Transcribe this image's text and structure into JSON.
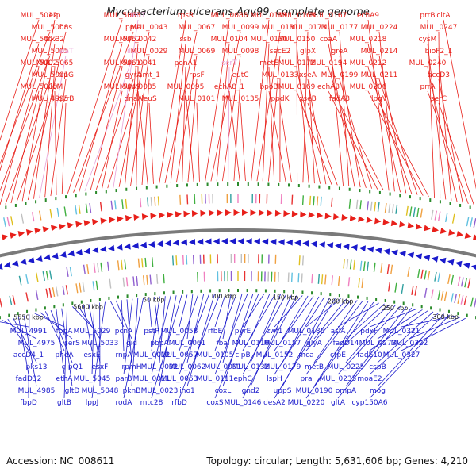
{
  "title": "Mycobacterium ulcerans Agy99, complete genome",
  "footer": {
    "accession": "Accession: NC_008611",
    "summary": "Topology: circular; Length: 5,631,606 bp; Genes: 4,210"
  },
  "colors": {
    "forward": "#e8201a",
    "reverse": "#1a1acc",
    "rna": "#e8a0d8",
    "backbone": "#7a7a7a",
    "ticks": "#2a8a2a"
  },
  "ticks": [
    "5550 kbp",
    "5600 kbp",
    "50 kbp",
    "100 kbp",
    "150 kbp",
    "200 kbp",
    "250 kbp",
    "300 kbp"
  ],
  "forward_genes": [
    {
      "name": "MUL_5012",
      "type": "gene"
    },
    {
      "name": "MUL_5008",
      "type": "gene"
    },
    {
      "name": "MUL_5007",
      "type": "gene"
    },
    {
      "name": "MUL_5005",
      "type": "gene"
    },
    {
      "name": "MUL_5002",
      "type": "gene"
    },
    {
      "name": "MUL_5001",
      "type": "gene"
    },
    {
      "name": "MUL_5000",
      "type": "gene"
    },
    {
      "name": "MUL_4995",
      "type": "gene"
    },
    {
      "name": "erp",
      "type": "gene"
    },
    {
      "name": "hns",
      "type": "gene"
    },
    {
      "name": "trxB2",
      "type": "gene"
    },
    {
      "name": "alaT",
      "type": "rna"
    },
    {
      "name": "MUL_5065",
      "type": "gene"
    },
    {
      "name": "trpG",
      "type": "gene"
    },
    {
      "name": "sigM",
      "type": "gene"
    },
    {
      "name": "gyrB",
      "type": "gene"
    },
    {
      "name": "MUL_5063",
      "type": "gene"
    },
    {
      "name": "ppiA",
      "type": "gene"
    },
    {
      "name": "MUL_5062",
      "type": "gene"
    },
    {
      "name": "ileT",
      "type": "rna"
    },
    {
      "name": "MUL_5061",
      "type": "gene"
    },
    {
      "name": "gyrA",
      "type": "gene"
    },
    {
      "name": "MUL_5049",
      "type": "gene"
    },
    {
      "name": "dnaA",
      "type": "gene"
    },
    {
      "name": "leuT",
      "type": "rna"
    },
    {
      "name": "MUL_0043",
      "type": "gene"
    },
    {
      "name": "MUL_0042",
      "type": "gene"
    },
    {
      "name": "MUL_0029",
      "type": "gene"
    },
    {
      "name": "MUL_0041",
      "type": "gene"
    },
    {
      "name": "amt_1",
      "type": "gene"
    },
    {
      "name": "MUL_0035",
      "type": "gene"
    },
    {
      "name": "leuS",
      "type": "gene"
    },
    {
      "name": "rpsR",
      "type": "gene"
    },
    {
      "name": "MUL_0067",
      "type": "gene"
    },
    {
      "name": "ssb",
      "type": "gene"
    },
    {
      "name": "MUL_0069",
      "type": "gene"
    },
    {
      "name": "ponA1",
      "type": "gene"
    },
    {
      "name": "rpsF",
      "type": "gene"
    },
    {
      "name": "MUL_0095",
      "type": "gene"
    },
    {
      "name": "MUL_0101",
      "type": "gene"
    },
    {
      "name": "MUL_0086",
      "type": "gene"
    },
    {
      "name": "MUL_0099",
      "type": "gene"
    },
    {
      "name": "MUL_0104",
      "type": "gene"
    },
    {
      "name": "MUL_0098",
      "type": "gene"
    },
    {
      "name": "serT",
      "type": "rna"
    },
    {
      "name": "eutC",
      "type": "gene"
    },
    {
      "name": "echA8_1",
      "type": "gene"
    },
    {
      "name": "MUL_0135",
      "type": "gene"
    },
    {
      "name": "MUL_0119",
      "type": "gene"
    },
    {
      "name": "MUL_0131",
      "type": "gene"
    },
    {
      "name": "MUL_0130",
      "type": "gene"
    },
    {
      "name": "secE2",
      "type": "gene"
    },
    {
      "name": "metE",
      "type": "gene"
    },
    {
      "name": "MUL_0133",
      "type": "gene"
    },
    {
      "name": "bpoB",
      "type": "gene"
    },
    {
      "name": "ppdK",
      "type": "gene"
    },
    {
      "name": "MUL_0163",
      "type": "gene"
    },
    {
      "name": "MUL_0173",
      "type": "gene"
    },
    {
      "name": "MUL_0150",
      "type": "gene"
    },
    {
      "name": "glpX",
      "type": "gene"
    },
    {
      "name": "MUL_0172",
      "type": "gene"
    },
    {
      "name": "xseA",
      "type": "gene"
    },
    {
      "name": "MUL_0169",
      "type": "gene"
    },
    {
      "name": "xseB",
      "type": "gene"
    },
    {
      "name": "MUL_0167",
      "type": "gene"
    },
    {
      "name": "MUL_0177",
      "type": "gene"
    },
    {
      "name": "coaA",
      "type": "gene"
    },
    {
      "name": "greA",
      "type": "gene"
    },
    {
      "name": "MUL_0194",
      "type": "gene"
    },
    {
      "name": "MUL_0199",
      "type": "gene"
    },
    {
      "name": "echA8",
      "type": "gene"
    },
    {
      "name": "fadA3",
      "type": "gene"
    },
    {
      "name": "echA9",
      "type": "gene"
    },
    {
      "name": "MUL_0224",
      "type": "gene"
    },
    {
      "name": "MUL_0218",
      "type": "gene"
    },
    {
      "name": "MUL_0214",
      "type": "gene"
    },
    {
      "name": "MUL_0212",
      "type": "gene"
    },
    {
      "name": "MUL_0211",
      "type": "gene"
    },
    {
      "name": "MUL_0206",
      "type": "gene"
    },
    {
      "name": "lpqV",
      "type": "gene"
    },
    {
      "name": "prrB",
      "type": "gene"
    },
    {
      "name": "MUL_0247",
      "type": "gene"
    },
    {
      "name": "cysM",
      "type": "gene"
    },
    {
      "name": "bioF2_1",
      "type": "gene"
    },
    {
      "name": "MUL_0240",
      "type": "gene"
    },
    {
      "name": "accD3",
      "type": "gene"
    },
    {
      "name": "prrA",
      "type": "gene"
    },
    {
      "name": "serC",
      "type": "gene"
    },
    {
      "name": "citA",
      "type": "gene"
    }
  ],
  "reverse_genes": [
    "MUL_4991",
    "MUL_4975",
    "accD4_1",
    "pks13",
    "fadD32",
    "MUL_4985",
    "fbpD",
    "fbpA",
    "serS",
    "pheA",
    "glpQ1",
    "ethA",
    "gltD",
    "gltB",
    "MUL_5029",
    "MUL_5033",
    "esxE",
    "esxF",
    "MUL_5045",
    "MUL_5048",
    "lppJ",
    "pcnA",
    "gid",
    "rnpA",
    "rpmH",
    "parB",
    "pknB",
    "rodA",
    "pstP",
    "pbpA",
    "MUL_0012",
    "MUL_0032",
    "MUL_0011",
    "MUL_0023",
    "mtc28",
    "MUL_0058",
    "MUL_0061",
    "MUL_0057",
    "MUL_0062",
    "MUL_0063",
    "ino1",
    "rfbD",
    "rfbE",
    "fbaI",
    "MUL_0105",
    "MUL_0091",
    "MUL_0111",
    "coxL",
    "coxS",
    "pyrE",
    "MUL_0110",
    "clpB",
    "MUL_0132",
    "ephC",
    "gnd2",
    "MUL_0146",
    "zwf1",
    "MUL_0157",
    "MUL_0152",
    "MUL_0179",
    "lspH",
    "uppS",
    "desA2",
    "MUL_0186",
    "glyA",
    "mca",
    "metB",
    "pra",
    "MUL_0190",
    "MUL_0220",
    "aslA",
    "fadD14",
    "ctpE",
    "MUL_0225",
    "MUL_0235",
    "ompA",
    "gltA",
    "pdxH",
    "MUL_0273",
    "fadE10",
    "cspB",
    "moaE2",
    "mog",
    "cyp150A6",
    "MUL_0321",
    "MUL_0322",
    "MUL_0327"
  ]
}
